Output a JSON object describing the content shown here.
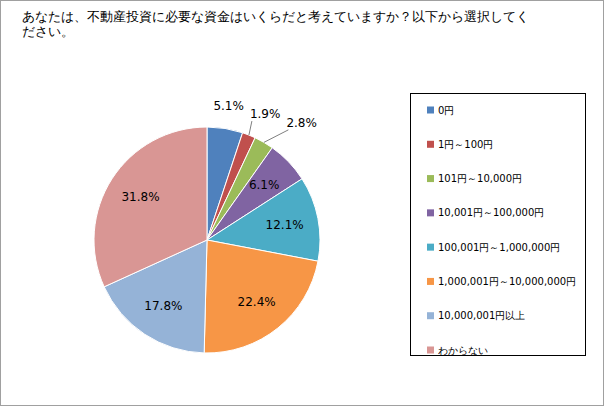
{
  "chart_data": {
    "type": "pie",
    "title": "あなたは、不動産投資に必要な資金はいくらだと考えていますか？以下から選択してください。",
    "categories": [
      "0円",
      "1円～100円",
      "101円～10,000円",
      "10,001円～100,000円",
      "100,001円～1,000,000円",
      "1,000,001円～10,000,000円",
      "10,000,001円以上",
      "わからない"
    ],
    "values": [
      5.1,
      1.9,
      2.8,
      6.1,
      12.1,
      22.4,
      17.8,
      31.8
    ],
    "value_labels": [
      "5.1%",
      "1.9%",
      "2.8%",
      "6.1%",
      "12.1%",
      "22.4%",
      "17.8%",
      "31.8%"
    ],
    "colors": [
      "#4f81bd",
      "#c0504d",
      "#9bbb59",
      "#8064a2",
      "#4bacc6",
      "#f79646",
      "#95b3d7",
      "#d99694"
    ],
    "data_labels": true,
    "legend": "right"
  }
}
